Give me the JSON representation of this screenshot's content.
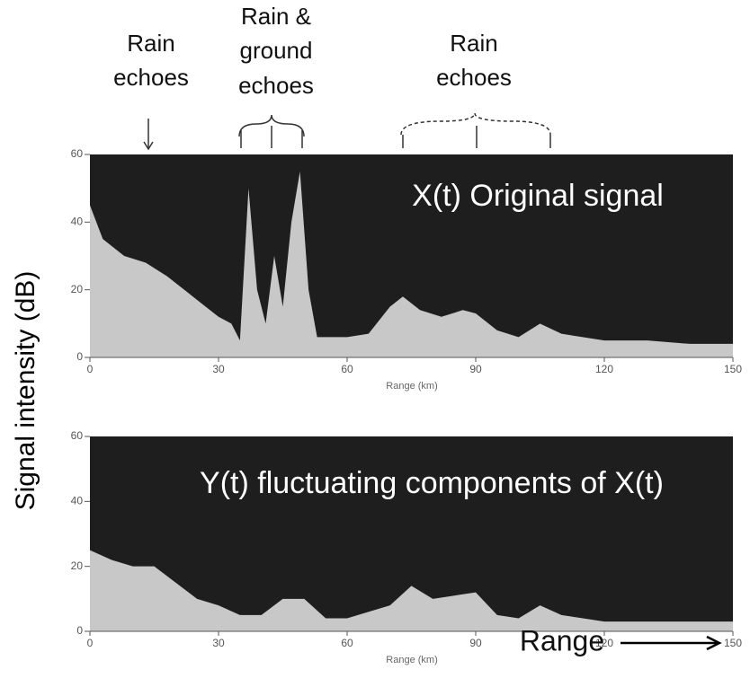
{
  "chart_data": [
    {
      "type": "area",
      "title": "X(t) Original signal",
      "xlabel": "Range (km)",
      "ylabel": "Signal intensity (dB)",
      "annotations": [
        [
          "Rain",
          "echoes"
        ],
        [
          "Rain &",
          "ground",
          "echoes"
        ],
        [
          "Rain",
          "echoes"
        ]
      ],
      "x": [
        0,
        3,
        8,
        13,
        18,
        22,
        26,
        30,
        33,
        35,
        37,
        39,
        41,
        43,
        45,
        47,
        49,
        51,
        53,
        60,
        65,
        70,
        73,
        77,
        82,
        87,
        90,
        95,
        100,
        105,
        110,
        120,
        130,
        140,
        150
      ],
      "values": [
        45,
        35,
        30,
        28,
        24,
        20,
        16,
        12,
        10,
        5,
        50,
        20,
        10,
        30,
        15,
        40,
        55,
        20,
        6,
        6,
        7,
        15,
        18,
        14,
        12,
        14,
        13,
        8,
        6,
        10,
        7,
        5,
        5,
        4,
        4
      ],
      "color": "#e6e6e6",
      "xlim": [
        0,
        150
      ],
      "ylim": [
        0,
        60
      ],
      "xticks": [
        0,
        30,
        60,
        90,
        120,
        150
      ],
      "yticks": [
        0,
        20,
        40,
        60
      ]
    },
    {
      "type": "area",
      "title": "Y(t) fluctuating components of X(t)",
      "xlabel": "Range (km)",
      "annotations": [
        [
          "Range"
        ]
      ],
      "x": [
        0,
        5,
        10,
        15,
        20,
        25,
        30,
        35,
        40,
        45,
        50,
        55,
        60,
        70,
        75,
        80,
        85,
        90,
        95,
        100,
        105,
        110,
        120,
        150
      ],
      "values": [
        25,
        22,
        20,
        20,
        15,
        10,
        8,
        5,
        5,
        10,
        10,
        4,
        4,
        8,
        14,
        10,
        11,
        12,
        5,
        4,
        8,
        5,
        3,
        3
      ],
      "color": "#e6e6e6",
      "xlim": [
        0,
        150
      ],
      "ylim": [
        0,
        60
      ],
      "xticks": [
        0,
        30,
        60,
        90,
        120,
        150
      ],
      "yticks": [
        0,
        20,
        40,
        60
      ]
    }
  ]
}
